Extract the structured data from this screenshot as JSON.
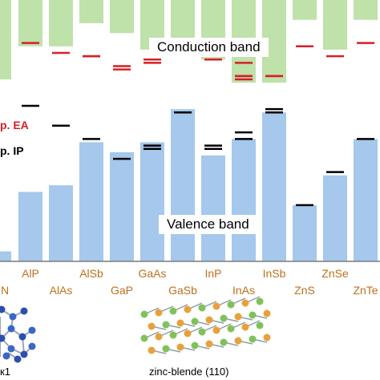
{
  "chart_data": {
    "type": "bar",
    "annotations": {
      "conduction_band": "Conduction band",
      "valence_band": "Valence band",
      "ea_legend": "p. EA",
      "ip_legend": "p. IP"
    },
    "categories": [
      "AlP",
      "AlAs",
      "AlSb",
      "GaP",
      "GaAs",
      "GaSb",
      "InP",
      "InAs",
      "InSb",
      "ZnS",
      "ZnSe",
      "ZnTe"
    ],
    "partial_categories": [
      "N"
    ],
    "conduction_band_bottom": [
      -4.0,
      -4.0,
      -3.3,
      -3.6,
      -4.1,
      -4.1,
      -4.4,
      -5.1,
      -5.1,
      -3.2,
      -4.1,
      -3.2
    ],
    "valence_band_top": [
      -8.4,
      -8.2,
      -6.9,
      -7.2,
      -6.9,
      -5.9,
      -7.3,
      -6.8,
      -6.0,
      -8.8,
      -7.9,
      -6.8
    ],
    "ea_marks": [
      [
        -3.9
      ],
      [
        -4.2
      ],
      [
        -4.3,
        -4.3
      ],
      [
        -4.6,
        -4.7
      ],
      [
        -4.4,
        -4.4,
        -4.5
      ],
      [
        -4.0
      ],
      [
        -4.4
      ],
      [
        -4.5,
        -4.9,
        -4.9,
        -5.0
      ],
      [
        -4.9,
        -4.9
      ],
      [
        -4.0
      ],
      [
        -4.3
      ],
      [
        -3.9
      ]
    ],
    "ip_marks": [
      [
        -5.8
      ],
      [
        -6.4
      ],
      [
        -6.8
      ],
      [
        -7.4
      ],
      [
        -7.0,
        -7.1,
        -7.1
      ],
      [
        -6.0,
        -6.0
      ],
      [
        -7.0,
        -7.1
      ],
      [
        -6.6,
        -6.8
      ],
      [
        -5.9,
        -6.0
      ],
      [
        -8.8
      ],
      [
        -7.8
      ],
      [
        -6.8
      ]
    ],
    "partial_bars": {
      "conduction_band_bottom": -5.0,
      "valence_band_top": -10.2
    },
    "ylim": [
      -10.5,
      -2.6
    ],
    "colors": {
      "conduction": "#bfe1aa",
      "valence": "#a5c8ec",
      "ea": "#d61f26",
      "ip": "#000000",
      "labels": "#c0701c"
    }
  },
  "structures": {
    "left_caption": "к1",
    "right_caption": "zinc-blende (110)"
  }
}
